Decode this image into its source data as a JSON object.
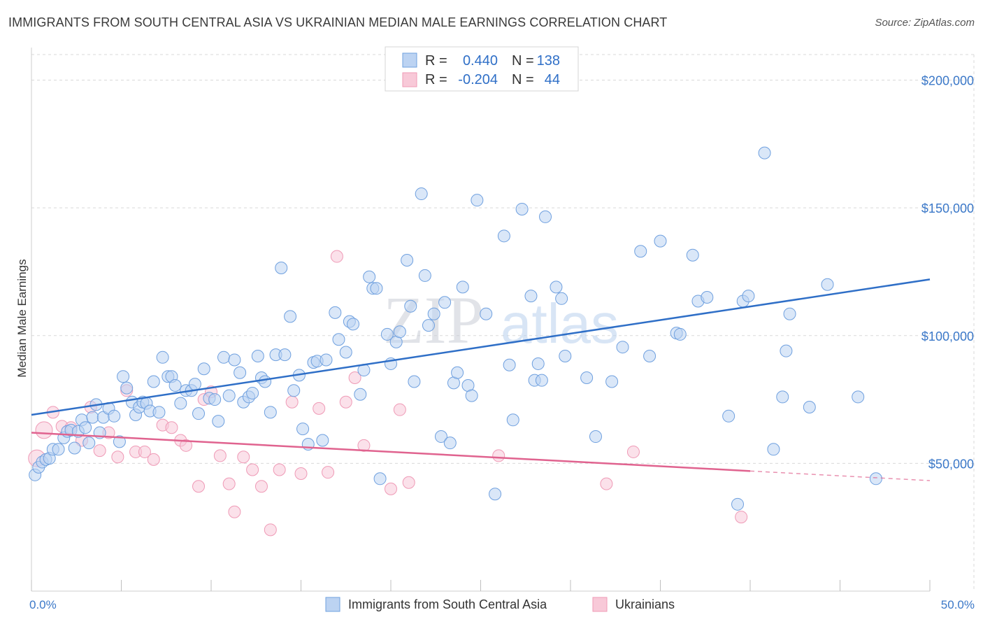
{
  "header": {
    "title": "IMMIGRANTS FROM SOUTH CENTRAL ASIA VS UKRAINIAN MEDIAN MALE EARNINGS CORRELATION CHART",
    "source": "Source: ZipAtlas.com"
  },
  "colors": {
    "blue": "#6fa0df",
    "blue_line": "#2f6fc7",
    "pink": "#ef9ab6",
    "pink_line": "#e0638f",
    "grid": "#d9d9d9",
    "tick_text": "#3b78c8"
  },
  "legend": {
    "rows": [
      {
        "r_label": "R =",
        "r_value": "0.440",
        "n_label": "N =",
        "n_value": "138"
      },
      {
        "r_label": "R =",
        "r_value": "-0.204",
        "n_label": "N =",
        "n_value": "44"
      }
    ]
  },
  "watermark": {
    "zip": "ZIP",
    "atlas": "atlas"
  },
  "chart_data": {
    "type": "scatter",
    "title": "IMMIGRANTS FROM SOUTH CENTRAL ASIA VS UKRAINIAN MEDIAN MALE EARNINGS CORRELATION CHART",
    "xlabel": "",
    "ylabel": "Median Male Earnings",
    "xlim": [
      0,
      50
    ],
    "ylim": [
      0,
      210000
    ],
    "x_tick_labels": [
      "0.0%",
      "50.0%"
    ],
    "y_ticks": [
      {
        "value": 50000,
        "label": "$50,000"
      },
      {
        "value": 100000,
        "label": "$100,000"
      },
      {
        "value": 150000,
        "label": "$150,000"
      },
      {
        "value": 200000,
        "label": "$200,000"
      }
    ],
    "legend_position": "top-center",
    "series": [
      {
        "name": "Immigrants from South Central Asia",
        "color": "#6fa0df",
        "r": 0.44,
        "n": 138,
        "trend": {
          "x": [
            0,
            50
          ],
          "y": [
            69000,
            122000
          ]
        },
        "points": [
          [
            0.2,
            45500
          ],
          [
            0.4,
            48500
          ],
          [
            0.6,
            50500
          ],
          [
            0.8,
            51500
          ],
          [
            1.0,
            52000
          ],
          [
            1.2,
            55500
          ],
          [
            1.5,
            55500
          ],
          [
            1.8,
            60000
          ],
          [
            2.0,
            62500
          ],
          [
            2.2,
            63000
          ],
          [
            2.4,
            56000
          ],
          [
            2.6,
            62500
          ],
          [
            2.8,
            67000
          ],
          [
            3.0,
            64000
          ],
          [
            3.2,
            58000
          ],
          [
            3.4,
            68000
          ],
          [
            3.6,
            73000
          ],
          [
            3.8,
            62000
          ],
          [
            4.0,
            68000
          ],
          [
            4.3,
            71500
          ],
          [
            4.6,
            68500
          ],
          [
            4.9,
            58500
          ],
          [
            5.1,
            84000
          ],
          [
            5.3,
            79500
          ],
          [
            5.6,
            74000
          ],
          [
            5.8,
            69000
          ],
          [
            6.0,
            72000
          ],
          [
            6.2,
            74000
          ],
          [
            6.4,
            73500
          ],
          [
            6.6,
            70500
          ],
          [
            6.8,
            82000
          ],
          [
            7.1,
            70000
          ],
          [
            7.3,
            91500
          ],
          [
            7.6,
            84000
          ],
          [
            7.8,
            84000
          ],
          [
            8.0,
            80500
          ],
          [
            8.3,
            73500
          ],
          [
            8.6,
            78500
          ],
          [
            8.9,
            78500
          ],
          [
            9.1,
            81000
          ],
          [
            9.3,
            69500
          ],
          [
            9.6,
            87000
          ],
          [
            9.9,
            75500
          ],
          [
            10.2,
            75000
          ],
          [
            10.4,
            66500
          ],
          [
            10.7,
            91500
          ],
          [
            11.0,
            76500
          ],
          [
            11.3,
            90500
          ],
          [
            11.6,
            85500
          ],
          [
            11.8,
            74000
          ],
          [
            12.1,
            76000
          ],
          [
            12.3,
            77500
          ],
          [
            12.6,
            92000
          ],
          [
            12.8,
            83500
          ],
          [
            13.0,
            82000
          ],
          [
            13.3,
            70000
          ],
          [
            13.6,
            92500
          ],
          [
            13.9,
            126500
          ],
          [
            14.1,
            92500
          ],
          [
            14.4,
            107500
          ],
          [
            14.6,
            78500
          ],
          [
            14.9,
            84500
          ],
          [
            15.1,
            63500
          ],
          [
            15.4,
            57500
          ],
          [
            15.7,
            89500
          ],
          [
            15.9,
            90000
          ],
          [
            16.2,
            59000
          ],
          [
            16.4,
            90500
          ],
          [
            16.9,
            109000
          ],
          [
            17.1,
            98500
          ],
          [
            17.5,
            93500
          ],
          [
            17.7,
            105500
          ],
          [
            17.9,
            104500
          ],
          [
            18.3,
            77000
          ],
          [
            18.5,
            86500
          ],
          [
            18.8,
            123000
          ],
          [
            19.0,
            118500
          ],
          [
            19.2,
            118500
          ],
          [
            19.4,
            44000
          ],
          [
            19.8,
            100500
          ],
          [
            20.0,
            89000
          ],
          [
            20.3,
            97500
          ],
          [
            20.5,
            101500
          ],
          [
            20.9,
            129500
          ],
          [
            21.1,
            111500
          ],
          [
            21.3,
            82000
          ],
          [
            21.7,
            155500
          ],
          [
            21.9,
            123500
          ],
          [
            22.1,
            104000
          ],
          [
            22.4,
            108500
          ],
          [
            22.8,
            60500
          ],
          [
            23.0,
            113000
          ],
          [
            23.3,
            58000
          ],
          [
            23.5,
            81500
          ],
          [
            23.7,
            85500
          ],
          [
            24.0,
            119000
          ],
          [
            24.3,
            80500
          ],
          [
            24.5,
            76500
          ],
          [
            24.8,
            153000
          ],
          [
            25.3,
            108500
          ],
          [
            25.8,
            38000
          ],
          [
            26.3,
            139000
          ],
          [
            26.6,
            88500
          ],
          [
            26.8,
            67000
          ],
          [
            27.3,
            149500
          ],
          [
            27.8,
            115500
          ],
          [
            28.0,
            82500
          ],
          [
            28.2,
            89000
          ],
          [
            28.4,
            82500
          ],
          [
            28.6,
            146500
          ],
          [
            29.2,
            119000
          ],
          [
            29.5,
            114500
          ],
          [
            29.7,
            92000
          ],
          [
            30.9,
            83500
          ],
          [
            31.4,
            60500
          ],
          [
            32.3,
            82000
          ],
          [
            32.9,
            95500
          ],
          [
            33.9,
            133000
          ],
          [
            34.4,
            92000
          ],
          [
            35.0,
            137000
          ],
          [
            35.9,
            101000
          ],
          [
            36.1,
            100500
          ],
          [
            36.8,
            131500
          ],
          [
            37.1,
            113500
          ],
          [
            37.6,
            115000
          ],
          [
            38.8,
            68500
          ],
          [
            39.3,
            34000
          ],
          [
            39.6,
            113500
          ],
          [
            39.9,
            115500
          ],
          [
            40.8,
            171500
          ],
          [
            41.3,
            55500
          ],
          [
            41.8,
            76000
          ],
          [
            42.0,
            94000
          ],
          [
            42.2,
            108500
          ],
          [
            43.3,
            72000
          ],
          [
            44.3,
            120000
          ],
          [
            46.0,
            76000
          ],
          [
            47.0,
            44000
          ]
        ]
      },
      {
        "name": "Ukrainians",
        "color": "#ef9ab6",
        "r": -0.204,
        "n": 44,
        "trend": {
          "x": [
            0,
            40
          ],
          "y": [
            62000,
            47000
          ]
        },
        "points": [
          [
            0.3,
            52000
          ],
          [
            0.7,
            63000
          ],
          [
            1.2,
            70000
          ],
          [
            1.7,
            64500
          ],
          [
            2.2,
            64000
          ],
          [
            2.8,
            59000
          ],
          [
            3.3,
            72000
          ],
          [
            3.8,
            55000
          ],
          [
            4.3,
            62000
          ],
          [
            4.8,
            52500
          ],
          [
            5.3,
            78500
          ],
          [
            5.8,
            54500
          ],
          [
            6.3,
            54500
          ],
          [
            6.8,
            51500
          ],
          [
            7.3,
            65000
          ],
          [
            7.8,
            64000
          ],
          [
            8.3,
            59000
          ],
          [
            8.6,
            57000
          ],
          [
            9.3,
            41000
          ],
          [
            9.6,
            75000
          ],
          [
            10.0,
            78000
          ],
          [
            10.5,
            53000
          ],
          [
            11.0,
            42000
          ],
          [
            11.3,
            31000
          ],
          [
            11.8,
            52500
          ],
          [
            12.3,
            47500
          ],
          [
            12.8,
            41000
          ],
          [
            13.3,
            24000
          ],
          [
            13.8,
            47500
          ],
          [
            14.5,
            74000
          ],
          [
            15.0,
            46000
          ],
          [
            16.0,
            71500
          ],
          [
            16.5,
            46500
          ],
          [
            17.0,
            131000
          ],
          [
            17.5,
            74000
          ],
          [
            18.0,
            83500
          ],
          [
            18.5,
            57000
          ],
          [
            20.0,
            40000
          ],
          [
            20.5,
            71000
          ],
          [
            21.0,
            42500
          ],
          [
            26.0,
            53000
          ],
          [
            32.0,
            42000
          ],
          [
            33.5,
            54500
          ],
          [
            39.5,
            29000
          ]
        ]
      }
    ]
  },
  "bottom_legend": {
    "items": [
      {
        "label": "Immigrants from South Central Asia"
      },
      {
        "label": "Ukrainians"
      }
    ]
  }
}
